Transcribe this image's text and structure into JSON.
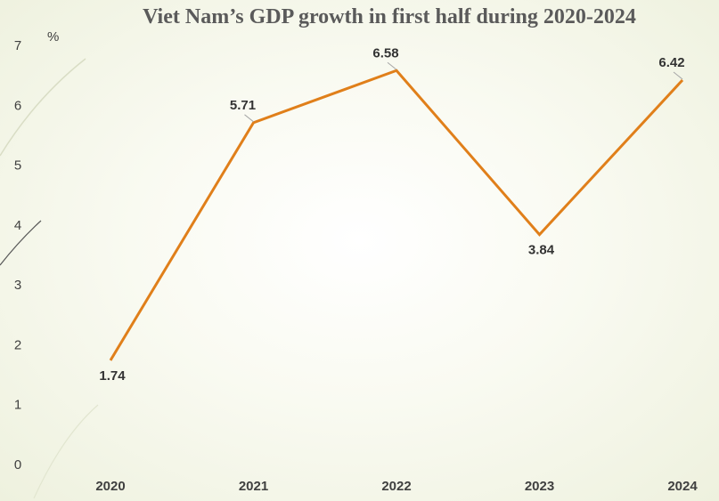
{
  "chart_data": {
    "type": "line",
    "title": "Viet Nam’s GDP growth in first half during 2020-2024",
    "xlabel": "",
    "ylabel": "%",
    "categories": [
      "2020",
      "2021",
      "2022",
      "2023",
      "2024"
    ],
    "series": [
      {
        "values": [
          1.74,
          5.71,
          6.58,
          3.84,
          6.42
        ],
        "color": "#e07f1a"
      }
    ],
    "data_labels": [
      "1.74",
      "5.71",
      "6.58",
      "3.84",
      "6.42"
    ],
    "label_positions": [
      "below",
      "above",
      "above",
      "below",
      "above"
    ],
    "ylim": [
      0,
      7
    ],
    "yticks": [
      "0",
      "1",
      "2",
      "3",
      "4",
      "5",
      "6",
      "7"
    ],
    "grid": false,
    "legend": "none"
  }
}
